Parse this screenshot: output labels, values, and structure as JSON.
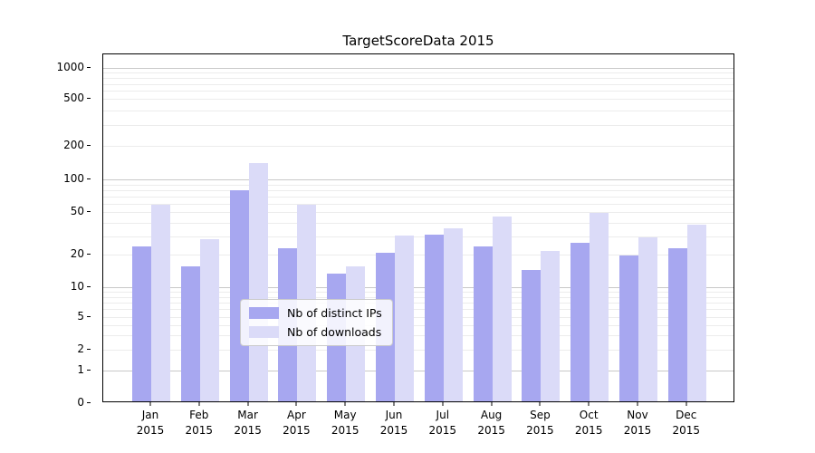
{
  "title": "TargetScoreData 2015",
  "colors": {
    "distinct_ips": "#a7a7f0",
    "downloads": "#dbdbf8",
    "grid_decade": "#c9c9c9",
    "grid_minor": "#ececec",
    "axis": "#000000",
    "legend_border": "#cbcbcb"
  },
  "legend": {
    "items": [
      {
        "label": "Nb of distinct IPs",
        "series": "distinct_ips"
      },
      {
        "label": "Nb of downloads",
        "series": "downloads"
      }
    ]
  },
  "chart_data": {
    "type": "bar",
    "title": "TargetScoreData 2015",
    "categories": [
      "Jan",
      "Feb",
      "Mar",
      "Apr",
      "May",
      "Jun",
      "Jul",
      "Aug",
      "Sep",
      "Oct",
      "Nov",
      "Dec"
    ],
    "year": "2015",
    "series": [
      {
        "name": "Nb of distinct IPs",
        "key": "distinct_ips",
        "values": [
          23,
          15,
          77,
          22,
          13,
          20,
          30,
          23,
          14,
          25,
          19,
          22
        ]
      },
      {
        "name": "Nb of downloads",
        "key": "downloads",
        "values": [
          56,
          27,
          135,
          56,
          15,
          29,
          34,
          44,
          21,
          47,
          28,
          37
        ]
      }
    ],
    "xlabel": "",
    "ylabel": "",
    "yscale": "symlog",
    "yticks": [
      0,
      1,
      2,
      5,
      10,
      20,
      50,
      100,
      200,
      500,
      1000
    ],
    "ylim": [
      0,
      1300
    ],
    "grid": true,
    "legend_position": "lower center"
  }
}
